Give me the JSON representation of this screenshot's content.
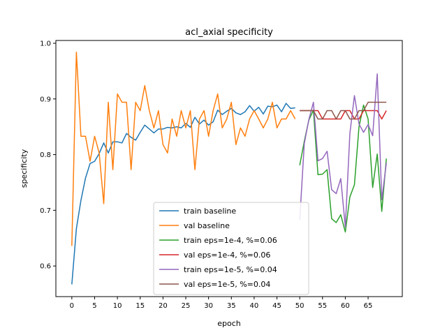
{
  "chart_data": {
    "type": "line",
    "title": "acl_axial specificity",
    "xlabel": "epoch",
    "ylabel": "specificity",
    "xlim": [
      -3.5,
      72.5
    ],
    "ylim": [
      0.545,
      1.005
    ],
    "xticks": [
      0,
      5,
      10,
      15,
      20,
      25,
      30,
      35,
      40,
      45,
      50,
      55,
      60,
      65
    ],
    "yticks": [
      0.6,
      0.7,
      0.8,
      0.9,
      1.0
    ],
    "ytick_labels": [
      "0.6",
      "0.7",
      "0.8",
      "0.9",
      "1.0"
    ],
    "grid": false,
    "legend_position": "lower-center",
    "series": [
      {
        "name": "train baseline",
        "color": "#1f77b4",
        "x": [
          0,
          1,
          2,
          3,
          4,
          5,
          6,
          7,
          8,
          9,
          10,
          11,
          12,
          13,
          14,
          15,
          16,
          17,
          18,
          19,
          20,
          21,
          22,
          23,
          24,
          25,
          26,
          27,
          28,
          29,
          30,
          31,
          32,
          33,
          34,
          35,
          36,
          37,
          38,
          39,
          40,
          41,
          42,
          43,
          44,
          45,
          46,
          47,
          48,
          49
        ],
        "y": [
          0.567,
          0.667,
          0.718,
          0.758,
          0.784,
          0.788,
          0.802,
          0.821,
          0.803,
          0.823,
          0.823,
          0.821,
          0.838,
          0.831,
          0.826,
          0.84,
          0.853,
          0.846,
          0.839,
          0.846,
          0.846,
          0.849,
          0.848,
          0.85,
          0.848,
          0.856,
          0.849,
          0.867,
          0.855,
          0.862,
          0.853,
          0.859,
          0.88,
          0.872,
          0.878,
          0.883,
          0.875,
          0.872,
          0.877,
          0.888,
          0.878,
          0.885,
          0.873,
          0.887,
          0.886,
          0.889,
          0.877,
          0.892,
          0.883,
          0.884
        ]
      },
      {
        "name": "val baseline",
        "color": "#ff7f0e",
        "x": [
          0,
          1,
          2,
          3,
          4,
          5,
          6,
          7,
          8,
          9,
          10,
          11,
          12,
          13,
          14,
          15,
          16,
          17,
          18,
          19,
          20,
          21,
          22,
          23,
          24,
          25,
          26,
          27,
          28,
          29,
          30,
          31,
          32,
          33,
          34,
          35,
          36,
          37,
          38,
          39,
          40,
          41,
          42,
          43,
          44,
          45,
          46,
          47,
          48,
          49
        ],
        "y": [
          0.636,
          0.984,
          0.833,
          0.833,
          0.788,
          0.833,
          0.803,
          0.712,
          0.894,
          0.773,
          0.909,
          0.894,
          0.894,
          0.773,
          0.894,
          0.879,
          0.924,
          0.879,
          0.848,
          0.879,
          0.818,
          0.803,
          0.864,
          0.833,
          0.879,
          0.848,
          0.879,
          0.773,
          0.864,
          0.879,
          0.833,
          0.879,
          0.909,
          0.848,
          0.864,
          0.894,
          0.818,
          0.848,
          0.833,
          0.864,
          0.879,
          0.864,
          0.848,
          0.864,
          0.894,
          0.848,
          0.864,
          0.864,
          0.879,
          0.864
        ]
      },
      {
        "name": "train eps=1e-4, %=0.06",
        "color": "#2ca02c",
        "x": [
          50,
          51,
          52,
          53,
          54,
          55,
          56,
          57,
          58,
          59,
          60,
          61,
          62,
          63,
          64,
          65,
          66,
          67,
          68,
          69
        ],
        "y": [
          0.781,
          0.824,
          0.862,
          0.88,
          0.764,
          0.765,
          0.773,
          0.685,
          0.678,
          0.692,
          0.661,
          0.724,
          0.746,
          0.85,
          0.889,
          0.864,
          0.741,
          0.801,
          0.698,
          0.793
        ]
      },
      {
        "name": "val eps=1e-4, %=0.06",
        "color": "#d62728",
        "x": [
          50,
          51,
          52,
          53,
          54,
          55,
          56,
          57,
          58,
          59,
          60,
          61,
          62,
          63,
          64,
          65,
          66,
          67,
          68,
          69
        ],
        "y": [
          0.879,
          0.879,
          0.879,
          0.879,
          0.879,
          0.864,
          0.864,
          0.864,
          0.864,
          0.864,
          0.879,
          0.879,
          0.864,
          0.864,
          0.879,
          0.879,
          0.879,
          0.879,
          0.864,
          0.879
        ]
      },
      {
        "name": "train eps=1e-5, %=0.04",
        "color": "#9467bd",
        "x": [
          50,
          51,
          52,
          53,
          54,
          55,
          56,
          57,
          58,
          59,
          60,
          61,
          62,
          63,
          64,
          65,
          66,
          67,
          68,
          69
        ],
        "y": [
          0.683,
          0.82,
          0.863,
          0.894,
          0.789,
          0.793,
          0.806,
          0.737,
          0.73,
          0.757,
          0.67,
          0.838,
          0.906,
          0.855,
          0.84,
          0.854,
          0.834,
          0.945,
          0.719,
          0.785
        ]
      },
      {
        "name": "val eps=1e-5, %=0.04",
        "color": "#8c564b",
        "x": [
          50,
          51,
          52,
          53,
          54,
          55,
          56,
          57,
          58,
          59,
          60,
          61,
          62,
          63,
          64,
          65,
          66,
          67,
          68,
          69
        ],
        "y": [
          0.879,
          0.879,
          0.879,
          0.879,
          0.864,
          0.864,
          0.879,
          0.879,
          0.864,
          0.879,
          0.879,
          0.864,
          0.864,
          0.879,
          0.879,
          0.894,
          0.894,
          0.894,
          0.894,
          0.894
        ]
      }
    ]
  }
}
